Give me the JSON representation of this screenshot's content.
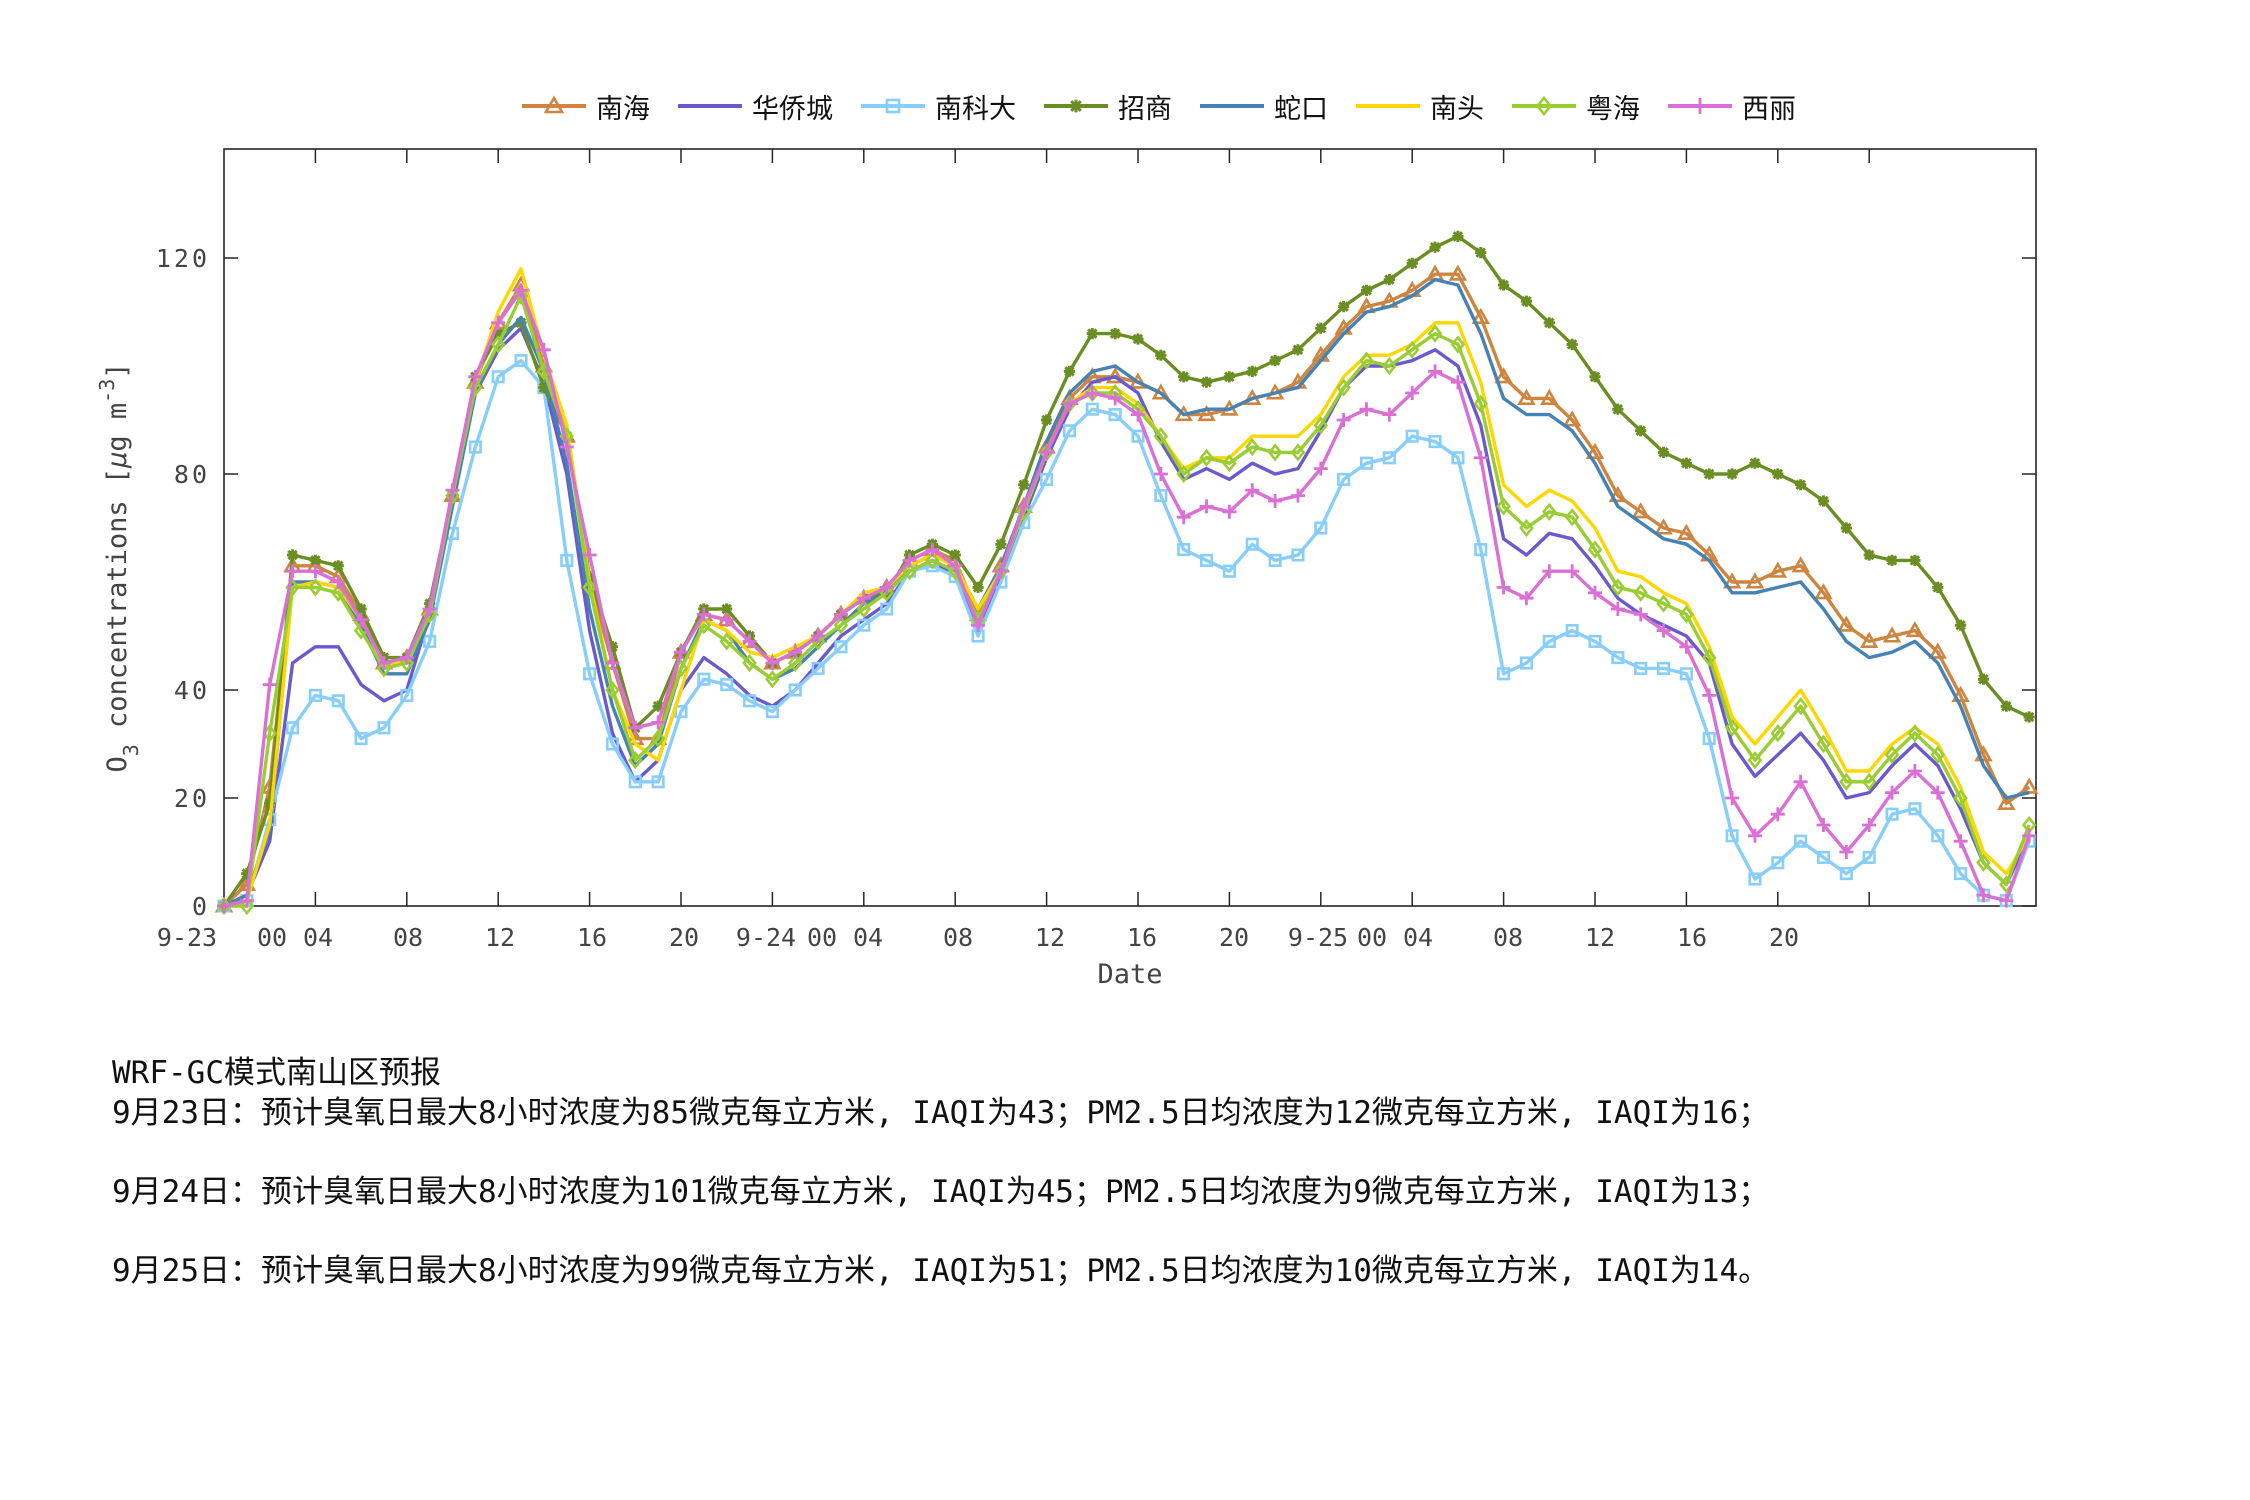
{
  "chart_data": {
    "type": "line",
    "title": "",
    "xlabel": "Date",
    "ylabel": "O3 concentrations [μg m^-3]",
    "ylim": [
      0,
      140
    ],
    "yticks": [
      0,
      20,
      40,
      80,
      120
    ],
    "xtick_labels": [
      "9-23",
      "00",
      "04",
      "08",
      "12",
      "16",
      "20",
      "9-24",
      "00",
      "04",
      "08",
      "12",
      "16",
      "20",
      "9-25",
      "00",
      "04",
      "08",
      "12",
      "16",
      "20"
    ],
    "grid": false,
    "legend_position": "top",
    "x": [
      0,
      1,
      2,
      3,
      4,
      5,
      6,
      7,
      8,
      9,
      10,
      11,
      12,
      13,
      14,
      15,
      16,
      17,
      18,
      19,
      20,
      21,
      22,
      23,
      24,
      25,
      26,
      27,
      28,
      29,
      30,
      31,
      32,
      33,
      34,
      35,
      36,
      37,
      38,
      39,
      40,
      41,
      42,
      43,
      44,
      45,
      46,
      47,
      48,
      49,
      50,
      51,
      52,
      53,
      54,
      55,
      56,
      57,
      58,
      59,
      60,
      61,
      62,
      63,
      64,
      65,
      66,
      67,
      68,
      69,
      70,
      71,
      72,
      73,
      74,
      75,
      76,
      77,
      78,
      79
    ],
    "series": [
      {
        "name": "南海",
        "color": "#cd853f",
        "marker": "triangle",
        "values": [
          0,
          4,
          22,
          63,
          63,
          61,
          54,
          45,
          46,
          55,
          76,
          97,
          108,
          115,
          100,
          87,
          60,
          45,
          31,
          31,
          47,
          54,
          53,
          49,
          45,
          47,
          50,
          54,
          57,
          59,
          64,
          66,
          64,
          54,
          63,
          74,
          85,
          94,
          98,
          98,
          97,
          95,
          91,
          91,
          92,
          94,
          95,
          97,
          102,
          107,
          111,
          112,
          114,
          117,
          117,
          109,
          98,
          94,
          94,
          90,
          84,
          76,
          73,
          70,
          69,
          65,
          60,
          60,
          62,
          63,
          58,
          52,
          49,
          50,
          51,
          47,
          39,
          28,
          19,
          22
        ]
      },
      {
        "name": "华侨城",
        "color": "#6a5acd",
        "marker": "none",
        "values": [
          0,
          2,
          12,
          45,
          48,
          48,
          41,
          38,
          40,
          54,
          75,
          95,
          103,
          107,
          97,
          80,
          51,
          32,
          23,
          27,
          40,
          46,
          43,
          39,
          37,
          40,
          45,
          50,
          53,
          56,
          62,
          64,
          61,
          51,
          61,
          72,
          83,
          92,
          97,
          98,
          95,
          86,
          79,
          81,
          79,
          82,
          80,
          81,
          88,
          96,
          100,
          100,
          101,
          103,
          100,
          89,
          68,
          65,
          69,
          68,
          63,
          57,
          54,
          52,
          50,
          45,
          30,
          24,
          28,
          32,
          27,
          20,
          21,
          26,
          30,
          26,
          18,
          8,
          4,
          13
        ]
      },
      {
        "name": "南科大",
        "color": "#87cefa",
        "marker": "square",
        "values": [
          0,
          1,
          16,
          33,
          39,
          38,
          31,
          33,
          39,
          49,
          69,
          85,
          98,
          101,
          96,
          64,
          43,
          30,
          23,
          23,
          36,
          42,
          41,
          38,
          36,
          40,
          44,
          48,
          52,
          55,
          62,
          63,
          61,
          50,
          60,
          71,
          79,
          88,
          92,
          91,
          87,
          76,
          66,
          64,
          62,
          67,
          64,
          65,
          70,
          79,
          82,
          83,
          87,
          86,
          83,
          66,
          43,
          45,
          49,
          51,
          49,
          46,
          44,
          44,
          43,
          31,
          13,
          5,
          8,
          12,
          9,
          6,
          9,
          17,
          18,
          13,
          6,
          2,
          1,
          12
        ]
      },
      {
        "name": "招商",
        "color": "#6b8e23",
        "marker": "star",
        "values": [
          0,
          6,
          19,
          65,
          64,
          63,
          55,
          46,
          46,
          56,
          76,
          98,
          106,
          108,
          96,
          87,
          61,
          48,
          33,
          37,
          47,
          55,
          55,
          50,
          45,
          47,
          50,
          54,
          57,
          58,
          65,
          67,
          65,
          59,
          67,
          78,
          90,
          99,
          106,
          106,
          105,
          102,
          98,
          97,
          98,
          99,
          101,
          103,
          107,
          111,
          114,
          116,
          119,
          122,
          124,
          121,
          115,
          112,
          108,
          104,
          98,
          92,
          88,
          84,
          82,
          80,
          80,
          82,
          80,
          78,
          75,
          70,
          65,
          64,
          64,
          59,
          52,
          42,
          37,
          35
        ]
      },
      {
        "name": "蛇口",
        "color": "#4682b4",
        "marker": "none",
        "values": [
          0,
          2,
          14,
          60,
          60,
          59,
          52,
          43,
          43,
          53,
          74,
          95,
          104,
          109,
          99,
          82,
          55,
          37,
          26,
          30,
          44,
          53,
          51,
          45,
          42,
          44,
          48,
          52,
          56,
          58,
          63,
          65,
          63,
          55,
          63,
          74,
          86,
          95,
          99,
          100,
          97,
          95,
          91,
          92,
          92,
          94,
          95,
          96,
          101,
          106,
          110,
          111,
          113,
          116,
          115,
          106,
          94,
          91,
          91,
          88,
          82,
          74,
          71,
          68,
          67,
          64,
          58,
          58,
          59,
          60,
          55,
          49,
          46,
          47,
          49,
          45,
          37,
          26,
          20,
          21
        ]
      },
      {
        "name": "南头",
        "color": "#ffd700",
        "marker": "none",
        "values": [
          0,
          1,
          15,
          59,
          60,
          59,
          53,
          45,
          45,
          54,
          76,
          97,
          110,
          118,
          102,
          89,
          60,
          40,
          30,
          27,
          40,
          53,
          51,
          47,
          46,
          48,
          50,
          54,
          58,
          59,
          63,
          65,
          63,
          55,
          62,
          73,
          84,
          93,
          96,
          96,
          93,
          87,
          81,
          83,
          83,
          87,
          87,
          87,
          91,
          98,
          102,
          102,
          104,
          108,
          108,
          97,
          78,
          74,
          77,
          75,
          70,
          62,
          61,
          58,
          56,
          48,
          35,
          30,
          35,
          40,
          33,
          25,
          25,
          30,
          33,
          30,
          22,
          10,
          6,
          13
        ]
      },
      {
        "name": "粤海",
        "color": "#9acd32",
        "marker": "diamond",
        "values": [
          0,
          0,
          32,
          59,
          59,
          58,
          51,
          44,
          45,
          54,
          76,
          96,
          104,
          113,
          99,
          87,
          59,
          40,
          27,
          31,
          44,
          52,
          49,
          45,
          42,
          45,
          49,
          52,
          55,
          58,
          62,
          64,
          62,
          53,
          62,
          73,
          84,
          93,
          95,
          95,
          92,
          87,
          80,
          83,
          82,
          85,
          84,
          84,
          89,
          96,
          101,
          100,
          103,
          106,
          104,
          93,
          74,
          70,
          73,
          72,
          66,
          59,
          58,
          56,
          54,
          46,
          33,
          27,
          32,
          37,
          30,
          23,
          23,
          28,
          32,
          28,
          20,
          8,
          4,
          15
        ]
      },
      {
        "name": "西丽",
        "color": "#da70d6",
        "marker": "plus",
        "values": [
          0,
          1,
          41,
          62,
          62,
          60,
          53,
          45,
          46,
          55,
          77,
          98,
          108,
          114,
          103,
          85,
          65,
          45,
          33,
          34,
          47,
          54,
          53,
          49,
          45,
          47,
          50,
          54,
          57,
          59,
          64,
          66,
          63,
          52,
          62,
          74,
          84,
          93,
          95,
          94,
          91,
          80,
          72,
          74,
          73,
          77,
          75,
          76,
          81,
          90,
          92,
          91,
          95,
          99,
          97,
          83,
          59,
          57,
          62,
          62,
          58,
          55,
          54,
          51,
          48,
          39,
          20,
          13,
          17,
          23,
          15,
          10,
          15,
          21,
          25,
          21,
          12,
          2,
          1,
          13
        ]
      }
    ]
  },
  "legend": {
    "items": [
      {
        "label": "南海",
        "color": "#cd853f",
        "marker": "triangle"
      },
      {
        "label": "华侨城",
        "color": "#6a5acd",
        "marker": "none"
      },
      {
        "label": "南科大",
        "color": "#87cefa",
        "marker": "square"
      },
      {
        "label": "招商",
        "color": "#6b8e23",
        "marker": "star"
      },
      {
        "label": "蛇口",
        "color": "#4682b4",
        "marker": "none"
      },
      {
        "label": "南头",
        "color": "#ffd700",
        "marker": "none"
      },
      {
        "label": "粤海",
        "color": "#9acd32",
        "marker": "diamond"
      },
      {
        "label": "西丽",
        "color": "#da70d6",
        "marker": "plus"
      }
    ]
  },
  "axes": {
    "xlabel": "Date",
    "ylabel_main": "O",
    "ylabel_sub": "3",
    "ylabel_rest": " concentrations [",
    "ylabel_mu": "μ",
    "ylabel_unit": "g m",
    "ylabel_sup": "-3",
    "ylabel_close": "]"
  },
  "forecast": {
    "title": "WRF-GC模式南山区预报",
    "lines": [
      "9月23日：预计臭氧日最大8小时浓度为85微克每立方米, IAQI为43；PM2.5日均浓度为12微克每立方米, IAQI为16；",
      "9月24日：预计臭氧日最大8小时浓度为101微克每立方米, IAQI为45；PM2.5日均浓度为9微克每立方米, IAQI为13；",
      "9月25日：预计臭氧日最大8小时浓度为99微克每立方米, IAQI为51；PM2.5日均浓度为10微克每立方米, IAQI为14。"
    ]
  }
}
